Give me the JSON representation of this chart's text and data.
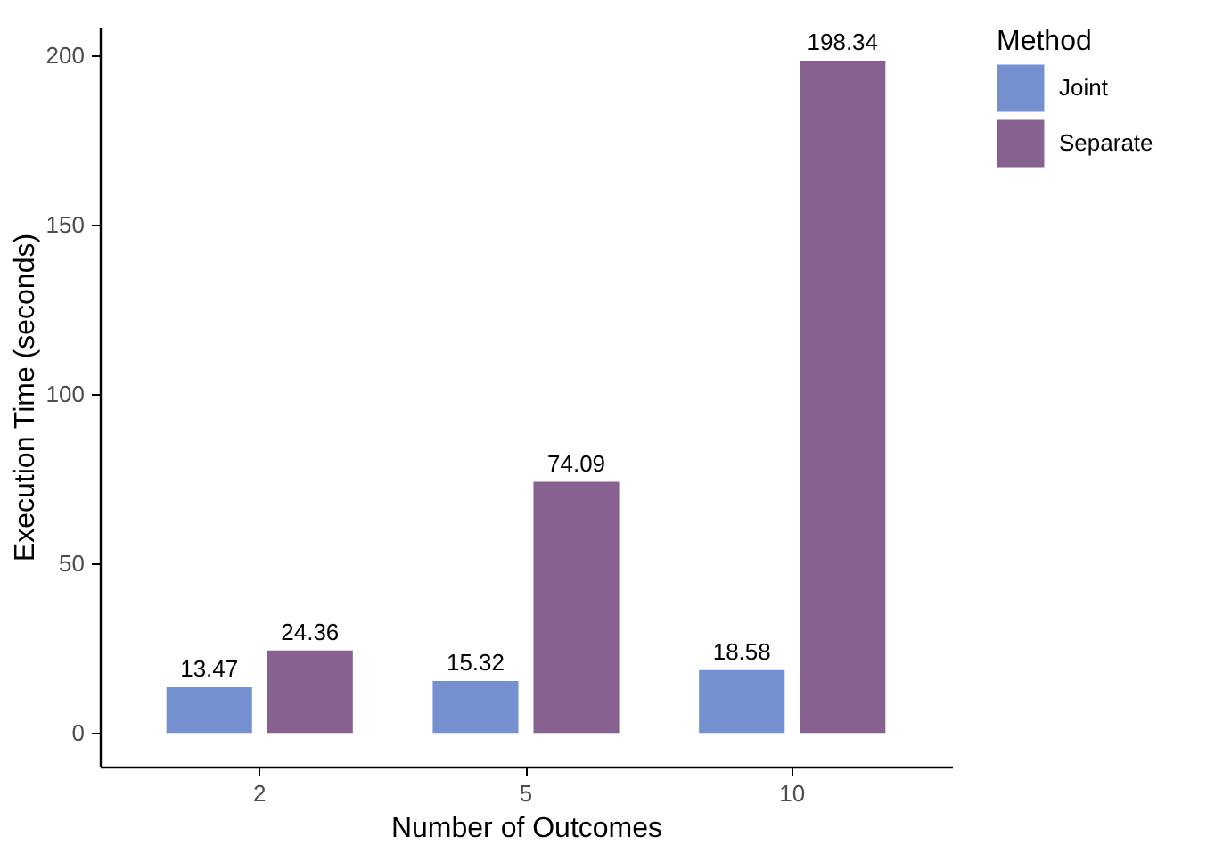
{
  "chart_data": {
    "type": "bar",
    "xlabel": "Number of Outcomes",
    "ylabel": "Execution Time (seconds)",
    "legend_title": "Method",
    "categories": [
      "2",
      "5",
      "10"
    ],
    "series": [
      {
        "name": "Joint",
        "color": "#7490cf",
        "values": [
          13.47,
          15.32,
          18.58
        ]
      },
      {
        "name": "Separate",
        "color": "#87618f",
        "values": [
          24.36,
          74.09,
          198.34
        ]
      }
    ],
    "ylim": [
      -9.9,
      208.3
    ],
    "yticks": [
      0,
      50,
      100,
      150,
      200
    ],
    "grid": false,
    "legend": "right",
    "data_labels": true
  }
}
